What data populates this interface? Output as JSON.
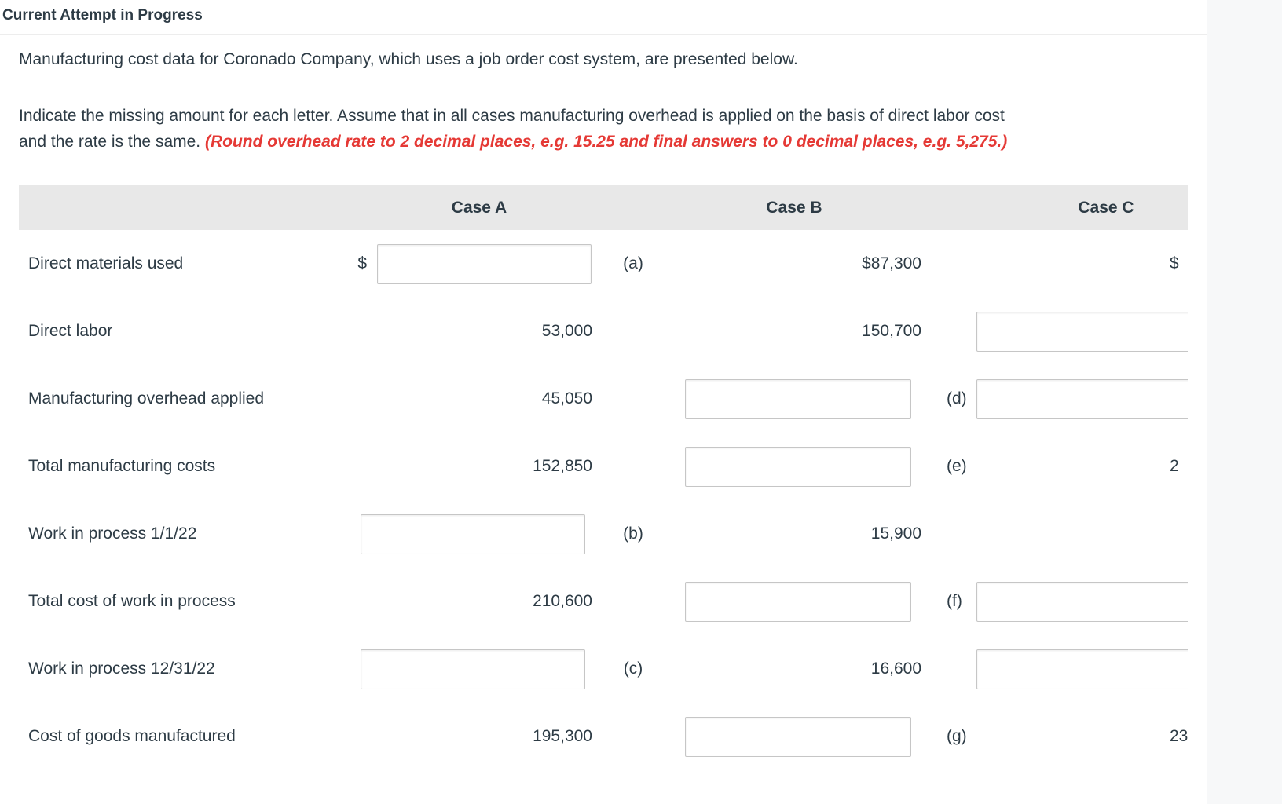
{
  "page": {
    "title": "Current Attempt in Progress"
  },
  "intro": {
    "paragraph1": "Manufacturing cost data for Coronado Company, which uses a job order cost system, are presented below.",
    "paragraph2_line1": "Indicate the missing amount for each letter. Assume that in all cases manufacturing overhead is applied on the basis of direct labor cost",
    "paragraph2_line2_normal": "and the rate is the same. ",
    "paragraph2_line2_emphasis": "(Round overhead rate to 2 decimal places, e.g. 15.25 and final answers to 0 decimal places, e.g. 5,275.)"
  },
  "table": {
    "columns": [
      "Case A",
      "Case B",
      "Case C"
    ],
    "rows": [
      {
        "label": "Direct materials used",
        "case_a": {
          "kind": "input",
          "prefix": "$",
          "value": "",
          "letter": "(a)"
        },
        "case_b": {
          "kind": "value",
          "value": "$87,300"
        },
        "case_c": {
          "kind": "value",
          "value": "$",
          "clipped": true
        }
      },
      {
        "label": "Direct labor",
        "case_a": {
          "kind": "value",
          "value": "53,000"
        },
        "case_b": {
          "kind": "value",
          "value": "150,700"
        },
        "case_c": {
          "kind": "input",
          "value": ""
        }
      },
      {
        "label": "Manufacturing overhead applied",
        "case_a": {
          "kind": "value",
          "value": "45,050"
        },
        "case_b": {
          "kind": "input",
          "value": "",
          "letter": "(d)"
        },
        "case_c": {
          "kind": "input",
          "value": ""
        }
      },
      {
        "label": "Total manufacturing costs",
        "case_a": {
          "kind": "value",
          "value": "152,850"
        },
        "case_b": {
          "kind": "input",
          "value": "",
          "letter": "(e)"
        },
        "case_c": {
          "kind": "value",
          "value": "2",
          "clipped": true
        }
      },
      {
        "label": "Work in process 1/1/22",
        "case_a": {
          "kind": "input",
          "value": "",
          "letter": "(b)"
        },
        "case_b": {
          "kind": "value",
          "value": "15,900"
        },
        "case_c": {
          "kind": "empty"
        }
      },
      {
        "label": "Total cost of work in process",
        "case_a": {
          "kind": "value",
          "value": "210,600"
        },
        "case_b": {
          "kind": "input",
          "value": "",
          "letter": "(f)"
        },
        "case_c": {
          "kind": "input",
          "value": ""
        }
      },
      {
        "label": "Work in process 12/31/22",
        "case_a": {
          "kind": "input",
          "value": "",
          "letter": "(c)"
        },
        "case_b": {
          "kind": "value",
          "value": "16,600"
        },
        "case_c": {
          "kind": "input",
          "value": ""
        }
      },
      {
        "label": "Cost of goods manufactured",
        "case_a": {
          "kind": "value",
          "value": "195,300"
        },
        "case_b": {
          "kind": "input",
          "value": "",
          "letter": "(g)"
        },
        "case_c": {
          "kind": "value",
          "value": "23",
          "clipped": true
        }
      }
    ]
  },
  "colors": {
    "text": "#2d3b45",
    "accent_red": "#e53935",
    "header_band": "#e8e8e8",
    "input_border": "#c6c6c6",
    "page_background": "#f7f8f9",
    "card_background": "#ffffff",
    "divider": "#ededed"
  }
}
